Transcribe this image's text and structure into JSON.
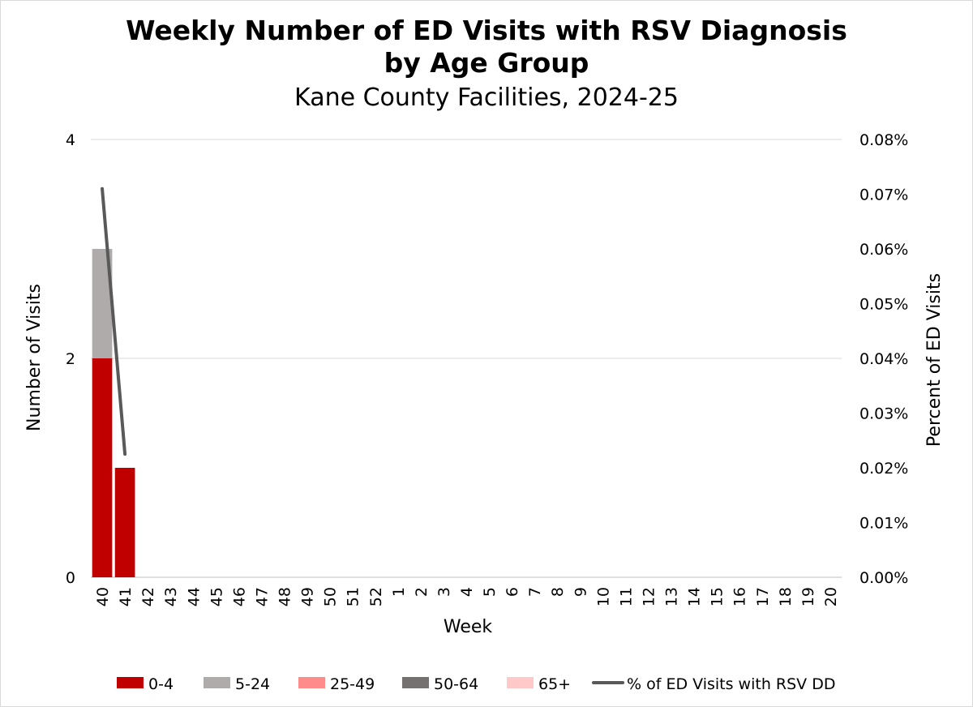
{
  "chart_data": {
    "type": "bar",
    "stacked": true,
    "title_line1": "Weekly Number of ED Visits with RSV Diagnosis",
    "title_line2": "by Age Group",
    "subtitle": "Kane County Facilities, 2024-25",
    "xlabel": "Week",
    "ylabel": "Number of Visits",
    "y2label": "Percent of ED Visits",
    "ylim": [
      0,
      4
    ],
    "yticks": [
      0,
      2,
      4
    ],
    "y2lim": [
      0,
      0.08
    ],
    "y2ticks": [
      "0.00%",
      "0.01%",
      "0.02%",
      "0.03%",
      "0.04%",
      "0.05%",
      "0.06%",
      "0.07%",
      "0.08%"
    ],
    "categories": [
      "40",
      "41",
      "42",
      "43",
      "44",
      "45",
      "46",
      "47",
      "48",
      "49",
      "50",
      "51",
      "52",
      "1",
      "2",
      "3",
      "4",
      "5",
      "6",
      "7",
      "8",
      "9",
      "10",
      "11",
      "12",
      "13",
      "14",
      "15",
      "16",
      "17",
      "18",
      "19",
      "20"
    ],
    "series": [
      {
        "name": "0-4",
        "color": "#c00000",
        "values": [
          2,
          1,
          0,
          0,
          0,
          0,
          0,
          0,
          0,
          0,
          0,
          0,
          0,
          0,
          0,
          0,
          0,
          0,
          0,
          0,
          0,
          0,
          0,
          0,
          0,
          0,
          0,
          0,
          0,
          0,
          0,
          0,
          0
        ]
      },
      {
        "name": "5-24",
        "color": "#afabab",
        "values": [
          1,
          0,
          0,
          0,
          0,
          0,
          0,
          0,
          0,
          0,
          0,
          0,
          0,
          0,
          0,
          0,
          0,
          0,
          0,
          0,
          0,
          0,
          0,
          0,
          0,
          0,
          0,
          0,
          0,
          0,
          0,
          0,
          0
        ]
      },
      {
        "name": "25-49",
        "color": "#ff8b8b",
        "values": [
          0,
          0,
          0,
          0,
          0,
          0,
          0,
          0,
          0,
          0,
          0,
          0,
          0,
          0,
          0,
          0,
          0,
          0,
          0,
          0,
          0,
          0,
          0,
          0,
          0,
          0,
          0,
          0,
          0,
          0,
          0,
          0,
          0
        ]
      },
      {
        "name": "50-64",
        "color": "#767171",
        "values": [
          0,
          0,
          0,
          0,
          0,
          0,
          0,
          0,
          0,
          0,
          0,
          0,
          0,
          0,
          0,
          0,
          0,
          0,
          0,
          0,
          0,
          0,
          0,
          0,
          0,
          0,
          0,
          0,
          0,
          0,
          0,
          0,
          0
        ]
      },
      {
        "name": "65+",
        "color": "#ffc9c9",
        "values": [
          0,
          0,
          0,
          0,
          0,
          0,
          0,
          0,
          0,
          0,
          0,
          0,
          0,
          0,
          0,
          0,
          0,
          0,
          0,
          0,
          0,
          0,
          0,
          0,
          0,
          0,
          0,
          0,
          0,
          0,
          0,
          0,
          0
        ]
      }
    ],
    "line_series": {
      "name": "% of ED Visits with RSV DD",
      "color": "#595959",
      "axis": "secondary",
      "values": [
        0.071,
        0.0225
      ]
    },
    "grid": "horizontal",
    "legend_position": "bottom"
  }
}
